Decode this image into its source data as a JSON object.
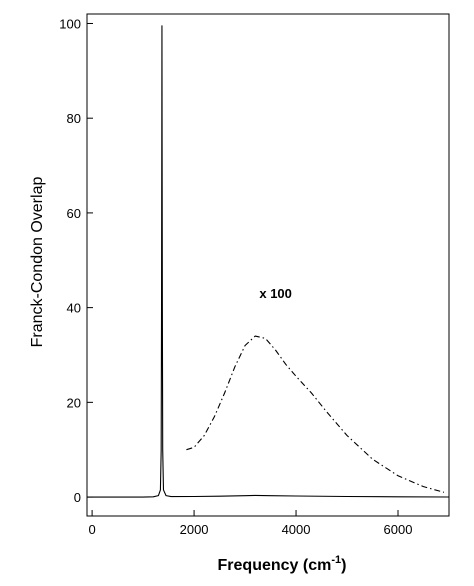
{
  "chart_data": {
    "type": "line",
    "title": "",
    "xlabel": "Frequency (cm",
    "xlabel_sup": "-1",
    "xlabel_close": ")",
    "ylabel": "Franck-Condon Overlap",
    "xlim": [
      -100,
      7000
    ],
    "ylim": [
      -4,
      102
    ],
    "x_ticks": [
      0,
      2000,
      4000,
      6000
    ],
    "y_ticks": [
      0,
      20,
      40,
      60,
      80,
      100
    ],
    "grid": false,
    "legend": "none",
    "annotations": [
      {
        "text": "x 100",
        "x": 3600,
        "y": 42
      }
    ],
    "series": [
      {
        "style": "solid",
        "color": "#000000",
        "points": [
          [
            -100,
            0
          ],
          [
            1000,
            0
          ],
          [
            1200,
            0.05
          ],
          [
            1300,
            0.3
          ],
          [
            1340,
            1.5
          ],
          [
            1355,
            10
          ],
          [
            1362,
            40
          ],
          [
            1367,
            75
          ],
          [
            1370,
            99.5
          ],
          [
            1373,
            75
          ],
          [
            1378,
            40
          ],
          [
            1385,
            10
          ],
          [
            1400,
            1.5
          ],
          [
            1450,
            0.3
          ],
          [
            1550,
            0.1
          ],
          [
            2000,
            0.12
          ],
          [
            2500,
            0.18
          ],
          [
            3000,
            0.28
          ],
          [
            3200,
            0.34
          ],
          [
            3500,
            0.3
          ],
          [
            4000,
            0.22
          ],
          [
            5000,
            0.12
          ],
          [
            6000,
            0.05
          ],
          [
            7000,
            0.01
          ]
        ]
      },
      {
        "style": "dash-dot",
        "color": "#000000",
        "points": [
          [
            1850,
            10
          ],
          [
            2000,
            10.5
          ],
          [
            2200,
            13
          ],
          [
            2400,
            17
          ],
          [
            2600,
            22
          ],
          [
            2800,
            27.5
          ],
          [
            3000,
            32
          ],
          [
            3200,
            34
          ],
          [
            3400,
            33.5
          ],
          [
            3600,
            31
          ],
          [
            3800,
            28
          ],
          [
            4000,
            25.5
          ],
          [
            4300,
            22
          ],
          [
            4600,
            18
          ],
          [
            5000,
            13
          ],
          [
            5500,
            8
          ],
          [
            6000,
            4.5
          ],
          [
            6500,
            2.2
          ],
          [
            6900,
            1
          ]
        ]
      }
    ]
  }
}
